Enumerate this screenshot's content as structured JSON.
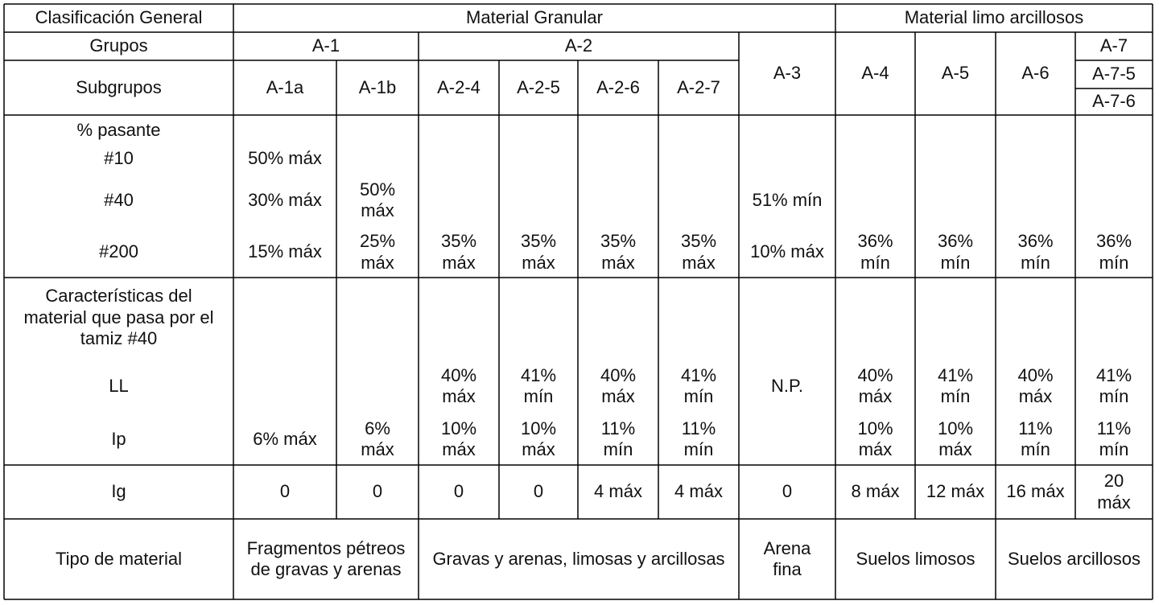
{
  "header": {
    "classification": "Clasificación General",
    "granular": "Material Granular",
    "silt_clay": "Material limo arcillosos"
  },
  "groups": {
    "label": "Grupos",
    "a1": "A-1",
    "a2": "A-2",
    "a3": "A-3",
    "a4": "A-4",
    "a5": "A-5",
    "a6": "A-6",
    "a7": "A-7"
  },
  "subgroups": {
    "label": "Subgrupos",
    "a1a": "A-1a",
    "a1b": "A-1b",
    "a24": "A-2-4",
    "a25": "A-2-5",
    "a26": "A-2-6",
    "a27": "A-2-7",
    "a75": "A-7-5",
    "a76": "A-7-6"
  },
  "passing": {
    "label": "% pasante",
    "rows": [
      {
        "sieve": "#10",
        "values": [
          "50% máx",
          null,
          null,
          null,
          null,
          null,
          null,
          null,
          null,
          null,
          null
        ]
      },
      {
        "sieve": "#40",
        "values": [
          "30% máx",
          "50% máx",
          null,
          null,
          null,
          null,
          "51% mín",
          null,
          null,
          null,
          null
        ]
      },
      {
        "sieve": "#200",
        "values": [
          "15% máx",
          "25% máx",
          "35% máx",
          "35% máx",
          "35% máx",
          "35% máx",
          "10% máx",
          "36% mín",
          "36% mín",
          "36% mín",
          "36% mín"
        ]
      }
    ]
  },
  "characteristics": {
    "label": "Características del material que pasa por el tamiz #40",
    "rows": [
      {
        "name": "LL",
        "values": [
          null,
          null,
          "40% máx",
          "41% mín",
          "40% máx",
          "41% mín",
          "N.P.",
          "40% máx",
          "41% mín",
          "40% máx",
          "41% mín"
        ]
      },
      {
        "name": "Ip",
        "values": [
          "6% máx",
          "6% máx",
          "10% máx",
          "10% máx",
          "11% mín",
          "11% mín",
          null,
          "10% máx",
          "10% máx",
          "11% mín",
          "11% mín"
        ]
      }
    ]
  },
  "ig": {
    "label": "Ig",
    "values": [
      "0",
      "0",
      "0",
      "0",
      "4 máx",
      "4 máx",
      "0",
      "8 máx",
      "12 máx",
      "16 máx",
      "20 máx"
    ]
  },
  "material_type": {
    "label": "Tipo de material",
    "values": [
      "Fragmentos pétreos de gravas y arenas",
      "Gravas y arenas, limosas y arcillosas",
      "Arena fina",
      "Suelos limosos",
      "Suelos arcillosos"
    ]
  }
}
